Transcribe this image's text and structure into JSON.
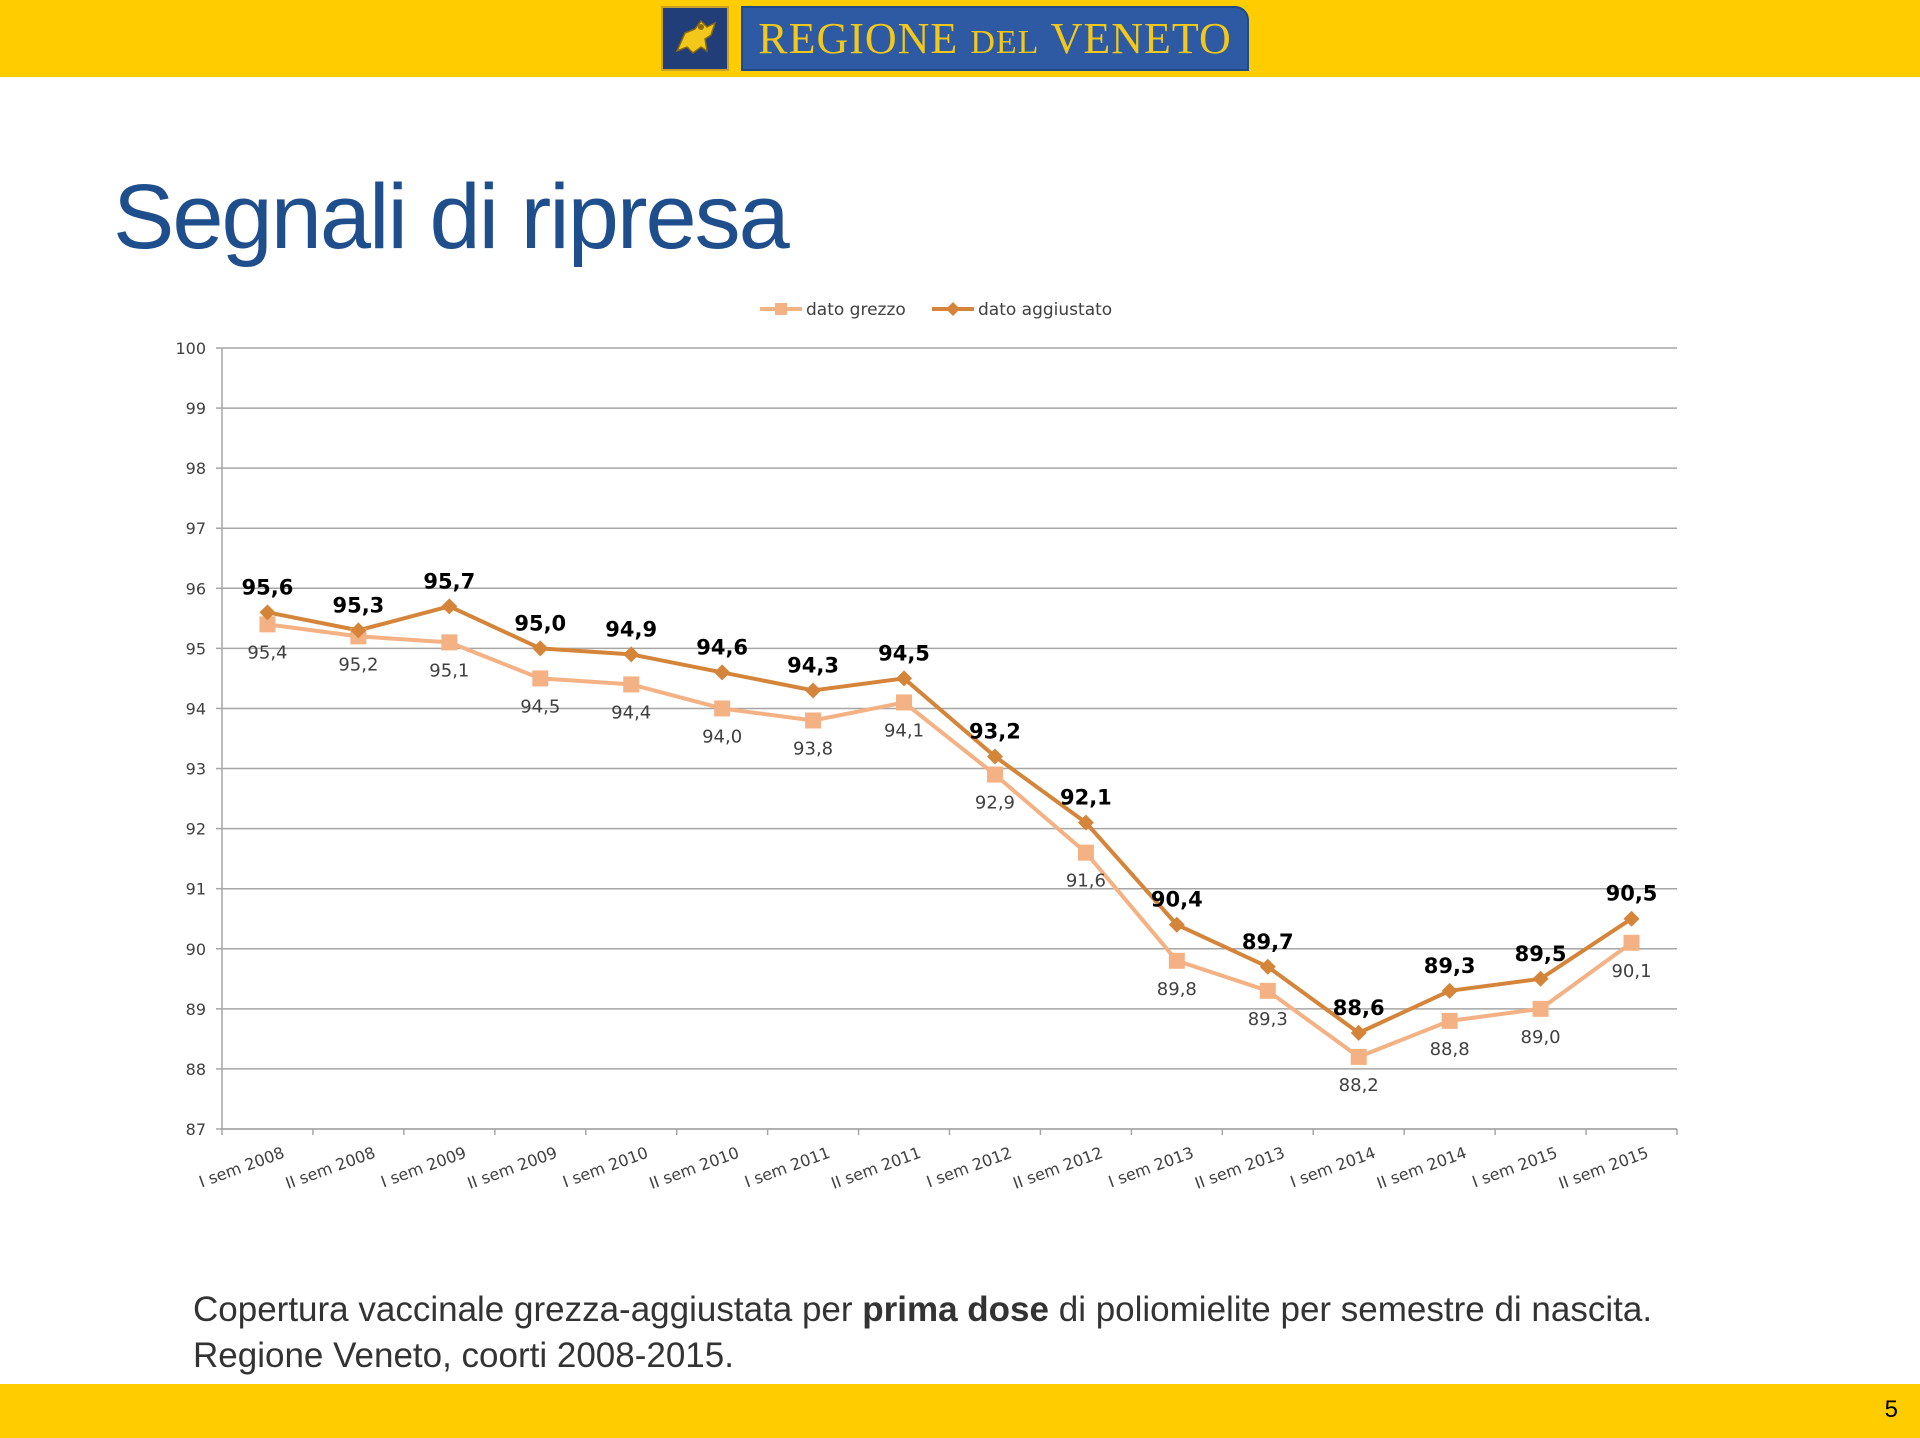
{
  "header": {
    "logo_text_1": "REGIONE ",
    "logo_text_2": "DEL",
    "logo_text_3": " VENETO"
  },
  "title": "Segnali di ripresa",
  "caption": {
    "line1_pre": "Copertura vaccinale grezza-aggiustata per ",
    "line1_bold": "prima dose",
    "line1_post": " di poliomielite per semestre di nascita.",
    "line2": "Regione Veneto, coorti 2008-2015."
  },
  "page_number": "5",
  "chart_data": {
    "type": "line",
    "title": "",
    "xlabel": "",
    "ylabel": "",
    "ylim": [
      87,
      100
    ],
    "yticks": [
      87,
      88,
      89,
      90,
      91,
      92,
      93,
      94,
      95,
      96,
      97,
      98,
      99,
      100
    ],
    "grid": true,
    "legend_position": "top-center",
    "categories": [
      "I sem 2008",
      "II sem 2008",
      "I sem 2009",
      "II sem 2009",
      "I sem 2010",
      "II sem 2010",
      "I sem 2011",
      "II sem 2011",
      "I sem 2012",
      "II sem 2012",
      "I sem 2013",
      "II sem 2013",
      "I sem 2014",
      "II sem 2014",
      "I sem 2015",
      "II sem 2015"
    ],
    "series": [
      {
        "name": "dato grezzo",
        "color": "#f4b183",
        "marker": "square",
        "values": [
          95.4,
          95.2,
          95.1,
          94.5,
          94.4,
          94.0,
          93.8,
          94.1,
          92.9,
          91.6,
          89.8,
          89.3,
          88.2,
          88.8,
          89.0,
          90.1
        ],
        "labels": [
          "95,4",
          "95,2",
          "95,1",
          "94,5",
          "94,4",
          "94,0",
          "93,8",
          "94,1",
          "92,9",
          "91,6",
          "89,8",
          "89,3",
          "88,2",
          "88,8",
          "89,0",
          "90,1"
        ]
      },
      {
        "name": "dato aggiustato",
        "color": "#d4853a",
        "marker": "diamond",
        "values": [
          95.6,
          95.3,
          95.7,
          95.0,
          94.9,
          94.6,
          94.3,
          94.5,
          93.2,
          92.1,
          90.4,
          89.7,
          88.6,
          89.3,
          89.5,
          90.5
        ],
        "labels": [
          "95,6",
          "95,3",
          "95,7",
          "95,0",
          "94,9",
          "94,6",
          "94,3",
          "94,5",
          "93,2",
          "92,1",
          "90,4",
          "89,7",
          "88,6",
          "89,3",
          "89,5",
          "90,5"
        ]
      }
    ]
  }
}
